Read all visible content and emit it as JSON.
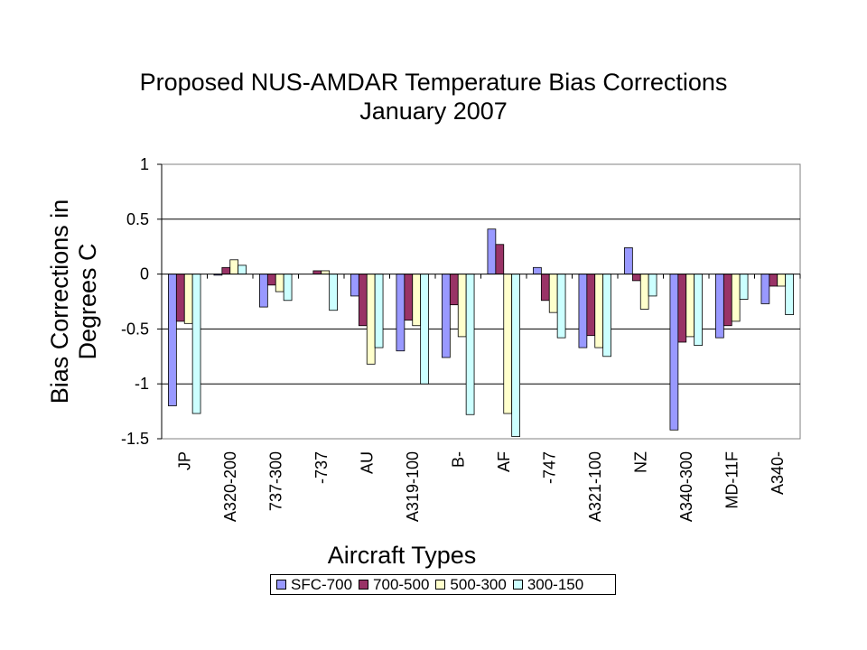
{
  "chart_data": {
    "type": "bar",
    "title": "Proposed NUS-AMDAR Temperature Bias Corrections",
    "subtitle": "January 2007",
    "ylabel_lines": [
      "Bias Corrections in",
      "Degrees C"
    ],
    "xlabel": "Aircraft Types",
    "ylim": [
      -1.5,
      1
    ],
    "yticks": [
      "1",
      "0.5",
      "0",
      "-0.5",
      "-1",
      "-1.5"
    ],
    "ytick_values": [
      1,
      0.5,
      0,
      -0.5,
      -1,
      -1.5
    ],
    "gridlines": [
      0.5,
      -0.5,
      -1
    ],
    "legend_position": "bottom",
    "categories": [
      "JP",
      "A320-200",
      "737-300",
      "-737",
      "AU",
      "A319-100",
      "B-",
      "AF",
      "-747",
      "A321-100",
      "NZ",
      "A340-300",
      "MD-11F",
      "A340-"
    ],
    "label_slots": [
      0,
      1,
      2,
      3,
      4,
      5,
      6,
      7,
      8,
      9,
      10,
      11,
      12,
      13
    ],
    "series": [
      {
        "name": "SFC-700",
        "color": "#9999ff",
        "values": [
          -1.2,
          -0.01,
          -0.3,
          0,
          -0.2,
          -0.7,
          -0.76,
          0.41,
          0.06,
          -0.67,
          0.24,
          -1.42,
          -0.58,
          -0.27
        ]
      },
      {
        "name": "700-500",
        "color": "#993366",
        "values": [
          -0.43,
          0.06,
          -0.1,
          0.03,
          -0.47,
          -0.42,
          -0.28,
          0.27,
          -0.24,
          -0.56,
          -0.06,
          -0.62,
          -0.47,
          -0.11
        ]
      },
      {
        "name": "500-300",
        "color": "#ffffcc",
        "values": [
          -0.45,
          0.13,
          -0.16,
          0.03,
          -0.82,
          -0.47,
          -0.57,
          -1.27,
          -0.35,
          -0.67,
          -0.32,
          -0.57,
          -0.43,
          -0.11
        ]
      },
      {
        "name": "300-150",
        "color": "#ccffff",
        "values": [
          -1.27,
          0.08,
          -0.24,
          -0.33,
          -0.67,
          -1.0,
          -1.28,
          -1.48,
          -0.58,
          -0.75,
          -0.2,
          -0.65,
          -0.23,
          -0.37
        ]
      }
    ]
  }
}
